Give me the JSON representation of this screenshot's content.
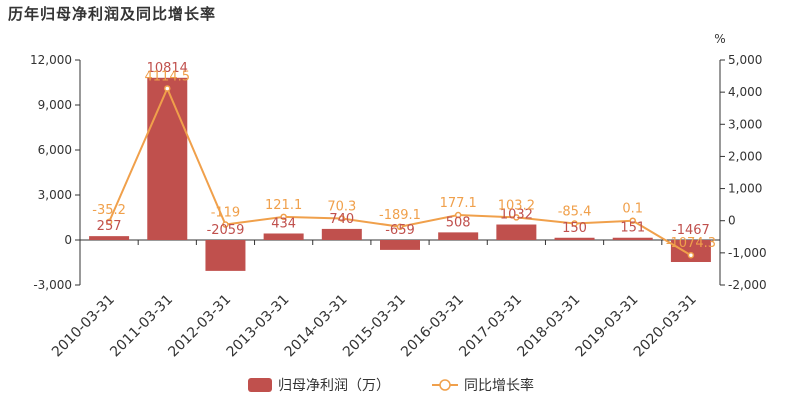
{
  "title": "历年归母净利润及同比增长率",
  "chart_data": {
    "type": "bar",
    "categories": [
      "2010-03-31",
      "2011-03-31",
      "2012-03-31",
      "2013-03-31",
      "2014-03-31",
      "2015-03-31",
      "2016-03-31",
      "2017-03-31",
      "2018-03-31",
      "2019-03-31",
      "2020-03-31"
    ],
    "series": [
      {
        "name": "归母净利润（万）",
        "type": "bar",
        "axis": "left",
        "color": "#c0504d",
        "values": [
          257,
          10814,
          -2059,
          434,
          740,
          -659,
          508,
          1032,
          150,
          151,
          -1467
        ],
        "labels": [
          "257",
          "10814",
          "-2059",
          "434",
          "740",
          "-659",
          "508",
          "1032",
          "150",
          "151",
          "-1467"
        ]
      },
      {
        "name": "同比增长率",
        "type": "line",
        "axis": "right",
        "color": "#f0a04b",
        "values": [
          -35.2,
          4114.5,
          -119,
          121.1,
          70.3,
          -189.1,
          177.1,
          103.2,
          -85.4,
          0.1,
          -1074.3
        ],
        "labels": [
          "-35.2",
          "4114.5",
          "-119",
          "121.1",
          "70.3",
          "-189.1",
          "177.1",
          "103.2",
          "-85.4",
          "0.1",
          "-1074.3"
        ]
      }
    ],
    "y_left": {
      "range": [
        -3000,
        12000
      ],
      "ticks": [
        "-3,000",
        "0",
        "3,000",
        "6,000",
        "9,000",
        "12,000"
      ],
      "values": [
        -3000,
        0,
        3000,
        6000,
        9000,
        12000
      ]
    },
    "y_right": {
      "unit": "%",
      "range": [
        -2000,
        5000
      ],
      "ticks": [
        "-2,000",
        "-1,000",
        "0",
        "1,000",
        "2,000",
        "3,000",
        "4,000",
        "5,000"
      ],
      "values": [
        -2000,
        -1000,
        0,
        1000,
        2000,
        3000,
        4000,
        5000
      ]
    },
    "grid": false,
    "legend_position": "bottom"
  }
}
